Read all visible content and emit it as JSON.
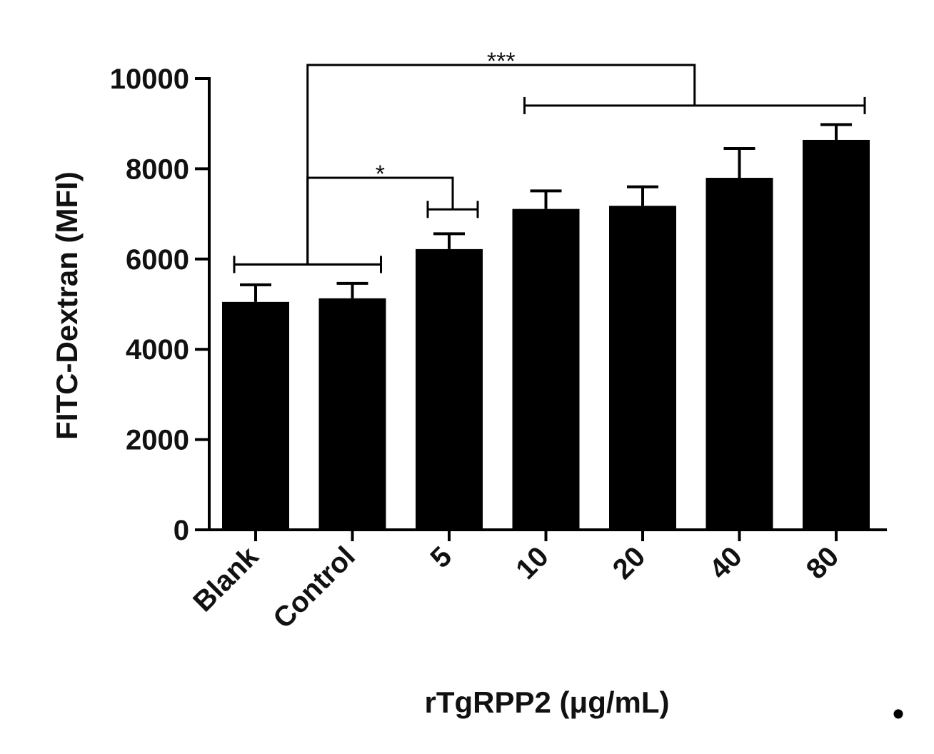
{
  "chart_data": {
    "type": "bar",
    "categories": [
      "Blank",
      "Control",
      "5",
      "10",
      "20",
      "40",
      "80"
    ],
    "values": [
      5050,
      5130,
      6220,
      7110,
      7180,
      7800,
      8640
    ],
    "errors": [
      380,
      330,
      340,
      400,
      420,
      650,
      340
    ],
    "ylabel": "FITC-Dextran (MFI)",
    "xlabel": "rTgRPP2 (μg/mL)",
    "ylim": [
      0,
      10000
    ],
    "yticks": [
      0,
      2000,
      4000,
      6000,
      8000,
      10000
    ],
    "bar_color": "#000000",
    "significance": [
      {
        "label": "*",
        "group_a": [
          "Blank",
          "Control"
        ],
        "group_b": [
          "5"
        ],
        "y_level": 7800,
        "y_groups": [
          5880,
          7100
        ]
      },
      {
        "label": "***",
        "group_a": [
          "Blank",
          "Control"
        ],
        "group_b": [
          "10",
          "20",
          "40",
          "80"
        ],
        "y_level": 10300,
        "y_groups": [
          5880,
          9400
        ]
      }
    ]
  },
  "extra_mark": "•"
}
